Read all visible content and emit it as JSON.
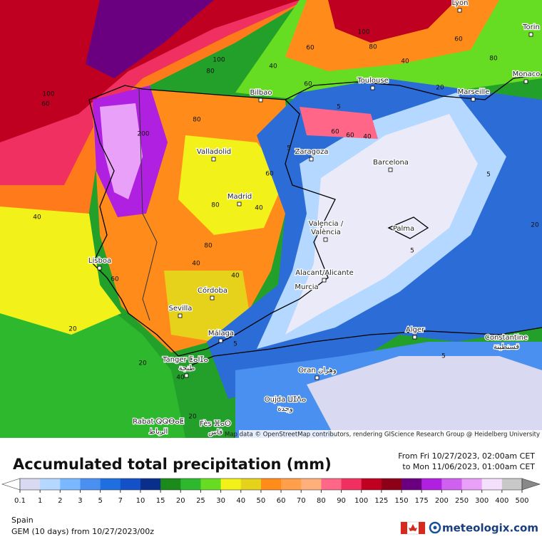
{
  "map": {
    "cities": [
      "Lyon",
      "Torin",
      "Monaco",
      "Toulouse",
      "Marseille",
      "Bilbao",
      "Valladolid",
      "Zaragoza",
      "Barcelona",
      "Madrid",
      "Valencia /",
      "València",
      "Palma",
      "Lisboa",
      "Alacant/Alicante",
      "Murcia",
      "Córdoba",
      "Sevilla",
      "Málaga",
      "Alger",
      "Constantine",
      "قسنطينة",
      "Tanger ⵟⴰⵏⵊⴰ",
      "طنجة",
      "Oran وهران",
      "Oujda ⵡⵊⴷⴰ",
      "وجدة",
      "Rabat ⵕⵕⴱⴰⵟ",
      "الرباط",
      "Fès ⴼⴰⵙ",
      "فاس"
    ],
    "contour_labels": [
      "100",
      "60",
      "40",
      "20",
      "20",
      "20",
      "40",
      "60",
      "80",
      "100",
      "200",
      "80",
      "60",
      "40",
      "80",
      "80",
      "40",
      "40",
      "60",
      "60",
      "40",
      "5",
      "5",
      "5",
      "5",
      "5",
      "5",
      "20",
      "40",
      "60",
      "80",
      "80",
      "60",
      "40",
      "100",
      "60",
      "20"
    ],
    "attribution": "Map data © OpenStreetMap contributors, rendering GIScience Research Group @ Heidelberg University"
  },
  "title": "Accumulated total precipitation (mm)",
  "period": {
    "from": "From Fri 10/27/2023, 02:00am CET",
    "to": "to Mon 11/06/2023, 01:00am CET"
  },
  "legend": {
    "ticks": [
      0.1,
      1,
      2,
      3,
      5,
      7,
      10,
      15,
      20,
      25,
      30,
      40,
      50,
      60,
      70,
      80,
      90,
      100,
      125,
      150,
      175,
      200,
      250,
      300,
      400,
      500
    ],
    "colors": [
      "#ffffff",
      "#d9d9f2",
      "#b4d8ff",
      "#7ab8ff",
      "#4a90f0",
      "#1f6fe0",
      "#1450c8",
      "#0a2e8c",
      "#1a8a1a",
      "#2db82d",
      "#66dd22",
      "#f2f21a",
      "#e6d21a",
      "#ff8c1a",
      "#ff9f4a",
      "#ffb07a",
      "#ff6688",
      "#f03060",
      "#c00020",
      "#8c0018",
      "#6a0080",
      "#b020e0",
      "#d060f0",
      "#e8a0f8",
      "#f4e0fa",
      "#c8c8c8",
      "#888888"
    ]
  },
  "footer": {
    "region": "Spain",
    "model": "GEM (10 days) from 10/27/2023/00z",
    "brand": "meteologix.com"
  }
}
